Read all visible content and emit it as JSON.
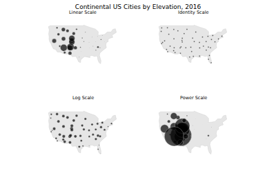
{
  "title": "Continental US Cities by Elevation, 2016",
  "chart_data": [
    {
      "type": "scatter",
      "title": "Linear Scale",
      "color": "#000000",
      "marker": "circle",
      "xlim": [
        -126,
        -65
      ],
      "ylim": [
        24,
        50
      ],
      "tick_labels": false,
      "x": [
        -122.3,
        -122.7,
        -122.4,
        -118.2,
        -117.2,
        -121.5,
        -119.8,
        -115.1,
        -112.1,
        -110.9,
        -106.6,
        -105.9,
        -106.4,
        -105.0,
        -104.8,
        -111.9,
        -116.2,
        -104.8,
        -108.5,
        -112.0,
        -117.4,
        -103.2,
        -111.7,
        -100.8,
        -96.0,
        -94.6,
        -97.5,
        -96.8,
        -95.4,
        -98.5,
        -101.8,
        -93.3,
        -87.6,
        -90.2,
        -90.0,
        -90.1,
        -84.4,
        -86.8,
        -83.0,
        -84.5,
        -82.6,
        -80.8,
        -80.2,
        -82.5,
        -81.7,
        -77.0,
        -74.0,
        -71.1,
        -80.0,
        -78.9
      ],
      "y": [
        47.6,
        45.5,
        37.8,
        34.1,
        32.7,
        38.6,
        39.5,
        36.2,
        33.4,
        32.2,
        35.1,
        35.7,
        31.8,
        39.7,
        38.8,
        40.8,
        43.6,
        41.1,
        45.8,
        46.6,
        47.7,
        44.1,
        35.2,
        46.8,
        41.3,
        39.1,
        35.5,
        32.8,
        29.8,
        29.4,
        35.2,
        45.0,
        41.9,
        38.6,
        35.1,
        30.0,
        33.7,
        36.2,
        42.3,
        39.1,
        35.6,
        35.2,
        25.8,
        28.0,
        30.3,
        38.9,
        40.7,
        42.4,
        40.4,
        42.9
      ],
      "sizes": [
        0.3,
        0.1,
        0.1,
        0.4,
        0.1,
        0.0,
        6.4,
        2.9,
        1.6,
        3.4,
        7.6,
        10.3,
        5.3,
        7.5,
        8.6,
        6.0,
        3.9,
        8.7,
        4.5,
        5.8,
        2.6,
        4.6,
        9.9,
        2.4,
        1.6,
        1.3,
        1.7,
        0.6,
        0.1,
        0.9,
        5.2,
        1.2,
        0.8,
        0.7,
        0.5,
        0.0,
        1.5,
        0.9,
        0.9,
        0.7,
        3.0,
        1.1,
        0.0,
        0.1,
        0.0,
        0.6,
        0.0,
        0.2,
        1.7,
        0.9
      ]
    },
    {
      "type": "scatter",
      "title": "Identity Scale",
      "color": "#000000",
      "marker": "circle",
      "xlim": [
        -126,
        -65
      ],
      "ylim": [
        24,
        50
      ],
      "tick_labels": false,
      "x": [
        -122.3,
        -122.7,
        -122.4,
        -118.2,
        -117.2,
        -121.5,
        -119.8,
        -115.1,
        -112.1,
        -110.9,
        -106.6,
        -105.9,
        -106.4,
        -105.0,
        -104.8,
        -111.9,
        -116.2,
        -104.8,
        -108.5,
        -112.0,
        -117.4,
        -103.2,
        -111.7,
        -100.8,
        -96.0,
        -94.6,
        -97.5,
        -96.8,
        -95.4,
        -98.5,
        -101.8,
        -93.3,
        -87.6,
        -90.2,
        -90.0,
        -90.1,
        -84.4,
        -86.8,
        -83.0,
        -84.5,
        -82.6,
        -80.8,
        -80.2,
        -82.5,
        -81.7,
        -77.0,
        -74.0,
        -71.1,
        -80.0,
        -78.9
      ],
      "y": [
        47.6,
        45.5,
        37.8,
        34.1,
        32.7,
        38.6,
        39.5,
        36.2,
        33.4,
        32.2,
        35.1,
        35.7,
        31.8,
        39.7,
        38.8,
        40.8,
        43.6,
        41.1,
        45.8,
        46.6,
        47.7,
        44.1,
        35.2,
        46.8,
        41.3,
        39.1,
        35.5,
        32.8,
        29.8,
        29.4,
        35.2,
        45.0,
        41.9,
        38.6,
        35.1,
        30.0,
        33.7,
        36.2,
        42.3,
        39.1,
        35.6,
        35.2,
        25.8,
        28.0,
        30.3,
        38.9,
        40.7,
        42.4,
        40.4,
        42.9
      ],
      "sizes": [
        2,
        2,
        2,
        2,
        2,
        2,
        2,
        2,
        2,
        2,
        2,
        2,
        2,
        2,
        2,
        2,
        2,
        2,
        2,
        2,
        2,
        2,
        2,
        2,
        2,
        2,
        2,
        2,
        2,
        2,
        2,
        2,
        2,
        2,
        2,
        2,
        2,
        2,
        2,
        2,
        2,
        2,
        2,
        2,
        2,
        2,
        2,
        2,
        2,
        2
      ]
    },
    {
      "type": "scatter",
      "title": "Log Scale",
      "color": "#000000",
      "marker": "circle",
      "xlim": [
        -126,
        -65
      ],
      "ylim": [
        24,
        50
      ],
      "tick_labels": false,
      "x": [
        -122.3,
        -122.7,
        -122.4,
        -118.2,
        -117.2,
        -121.5,
        -119.8,
        -115.1,
        -112.1,
        -110.9,
        -106.6,
        -105.9,
        -106.4,
        -105.0,
        -104.8,
        -111.9,
        -116.2,
        -104.8,
        -108.5,
        -112.0,
        -117.4,
        -103.2,
        -111.7,
        -100.8,
        -96.0,
        -94.6,
        -97.5,
        -96.8,
        -95.4,
        -98.5,
        -101.8,
        -93.3,
        -87.6,
        -90.2,
        -90.0,
        -90.1,
        -84.4,
        -86.8,
        -83.0,
        -84.5,
        -82.6,
        -80.8,
        -80.2,
        -82.5,
        -81.7,
        -77.0,
        -74.0,
        -71.1,
        -80.0,
        -78.9
      ],
      "y": [
        47.6,
        45.5,
        37.8,
        34.1,
        32.7,
        38.6,
        39.5,
        36.2,
        33.4,
        32.2,
        35.1,
        35.7,
        31.8,
        39.7,
        38.8,
        40.8,
        43.6,
        41.1,
        45.8,
        46.6,
        47.7,
        44.1,
        35.2,
        46.8,
        41.3,
        39.1,
        35.5,
        32.8,
        29.8,
        29.4,
        35.2,
        45.0,
        41.9,
        38.6,
        35.1,
        30.0,
        33.7,
        36.2,
        42.3,
        39.1,
        35.6,
        35.2,
        25.8,
        28.0,
        30.3,
        38.9,
        40.7,
        42.4,
        40.4,
        42.9
      ],
      "sizes": [
        2.7,
        2.0,
        2.1,
        2.9,
        2.2,
        1.8,
        4.4,
        4.0,
        3.6,
        4.1,
        4.5,
        4.6,
        4.3,
        4.5,
        4.5,
        4.4,
        4.1,
        4.5,
        4.2,
        4.3,
        3.9,
        4.2,
        4.6,
        3.9,
        3.6,
        3.6,
        3.7,
        3.2,
        2.3,
        3.4,
        4.3,
        3.5,
        3.3,
        3.2,
        3.0,
        1.0,
        3.6,
        3.3,
        3.3,
        3.2,
        4.0,
        3.5,
        0.9,
        2.0,
        1.4,
        3.1,
        1.8,
        2.6,
        3.7,
        3.3
      ]
    },
    {
      "type": "scatter",
      "title": "Power Scale",
      "color": "#000000",
      "marker": "circle",
      "xlim": [
        -126,
        -65
      ],
      "ylim": [
        24,
        50
      ],
      "tick_labels": false,
      "x": [
        -122.3,
        -122.7,
        -122.4,
        -118.2,
        -117.2,
        -121.5,
        -119.8,
        -115.1,
        -112.1,
        -110.9,
        -106.6,
        -105.9,
        -106.4,
        -105.0,
        -104.8,
        -111.9,
        -116.2,
        -104.8,
        -108.5,
        -112.0,
        -117.4,
        -103.2,
        -111.7,
        -100.8,
        -96.0,
        -94.6,
        -97.5,
        -96.8,
        -95.4,
        -98.5,
        -101.8,
        -93.3,
        -87.6,
        -90.2,
        -90.0,
        -90.1,
        -84.4,
        -86.8,
        -83.0,
        -84.5,
        -82.6,
        -80.8,
        -80.2,
        -82.5,
        -81.7,
        -77.0,
        -74.0,
        -71.1,
        -80.0,
        -78.9
      ],
      "y": [
        47.6,
        45.5,
        37.8,
        34.1,
        32.7,
        38.6,
        39.5,
        36.2,
        33.4,
        32.2,
        35.1,
        35.7,
        31.8,
        39.7,
        38.8,
        40.8,
        43.6,
        41.1,
        45.8,
        46.6,
        47.7,
        44.1,
        35.2,
        46.8,
        41.3,
        39.1,
        35.5,
        32.8,
        29.8,
        29.4,
        35.2,
        45.0,
        41.9,
        38.6,
        35.1,
        30.0,
        33.7,
        36.2,
        42.3,
        39.1,
        35.6,
        35.2,
        25.8,
        28.0,
        30.3,
        38.9,
        40.7,
        42.4,
        40.4,
        42.9
      ],
      "sizes": [
        0,
        0,
        0,
        0,
        0,
        0,
        12.0,
        2.4,
        0.7,
        3.4,
        16.7,
        30.7,
        8.3,
        16.5,
        21.5,
        10.6,
        4.4,
        21.7,
        5.8,
        9.7,
        2.0,
        6.1,
        28.3,
        1.7,
        0.7,
        0.5,
        0.9,
        0.1,
        0,
        0.3,
        7.7,
        0.4,
        0.2,
        0.1,
        0.1,
        0,
        0.7,
        0.2,
        0.2,
        0.1,
        2.7,
        0.3,
        0,
        0,
        0,
        0.1,
        0,
        0,
        0.9,
        0.2
      ]
    }
  ]
}
